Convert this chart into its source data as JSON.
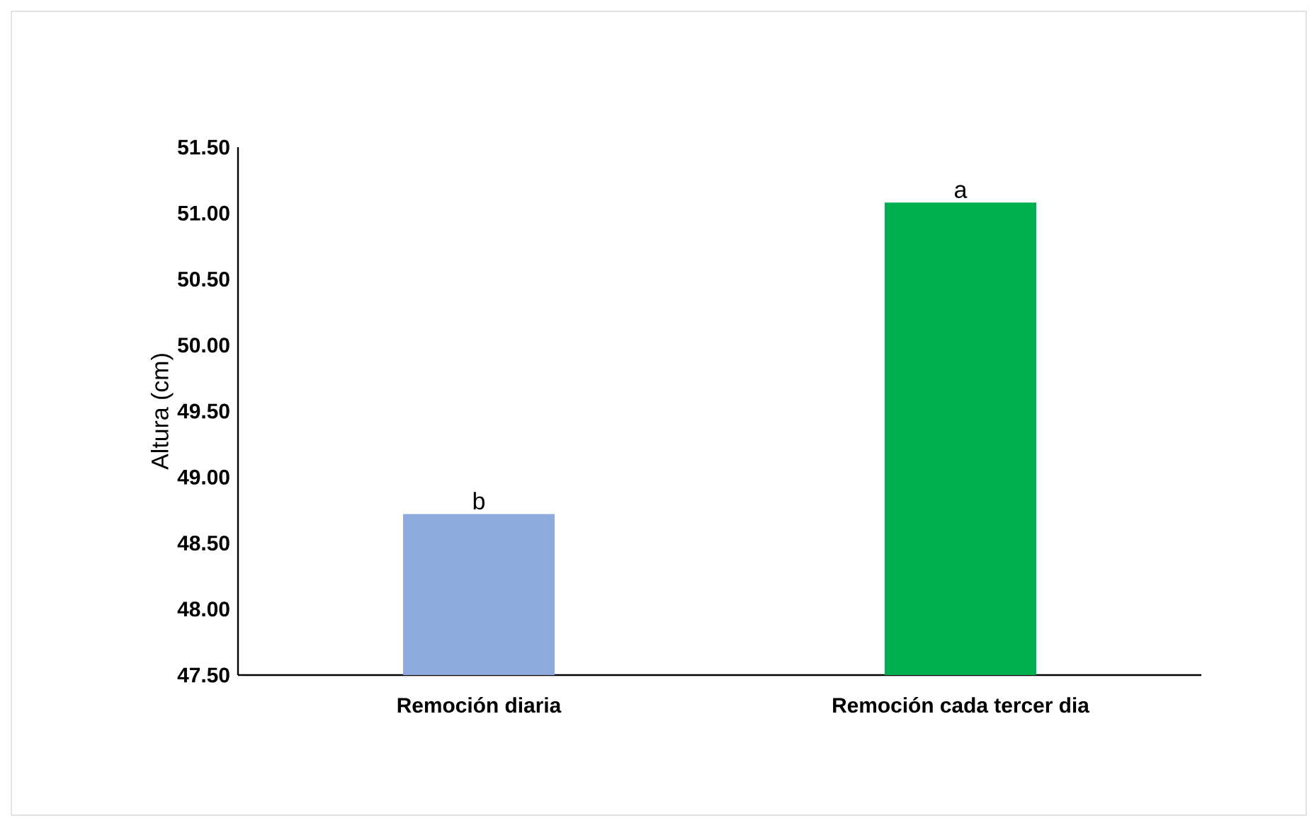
{
  "chart_data": {
    "type": "bar",
    "ylabel": "Altura (cm)",
    "categories": [
      "Remoción diaria",
      "Remoción cada tercer dia"
    ],
    "values": [
      48.72,
      51.08
    ],
    "colors": [
      "#8faadc",
      "#00b050"
    ],
    "ylim": [
      47.5,
      51.5
    ],
    "yticks": [
      {
        "value": 47.5,
        "label": "47.50"
      },
      {
        "value": 48.0,
        "label": "48.00"
      },
      {
        "value": 48.5,
        "label": "48.50"
      },
      {
        "value": 49.0,
        "label": "49.00"
      },
      {
        "value": 49.5,
        "label": "49.50"
      },
      {
        "value": 50.0,
        "label": "50.00"
      },
      {
        "value": 50.5,
        "label": "50.50"
      },
      {
        "value": 51.0,
        "label": "51.00"
      },
      {
        "value": 51.5,
        "label": "51.50"
      }
    ],
    "annotations": [
      {
        "text": "b",
        "x": "Remoción diaria",
        "y": 48.72
      },
      {
        "text": "a",
        "x": "Remoción cada tercer dia",
        "y": 51.08
      }
    ]
  }
}
